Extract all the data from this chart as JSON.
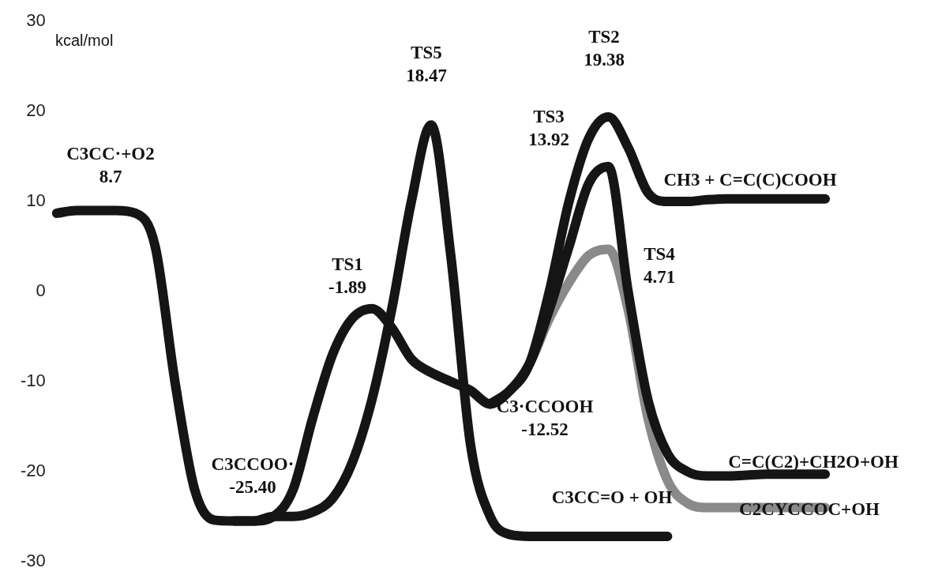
{
  "chart_data": {
    "type": "line",
    "ylabel": "kcal/mol",
    "marker": "none",
    "tick_labels": "y",
    "categories": [
      null,
      null,
      null,
      null,
      null,
      null,
      null,
      null,
      null,
      null,
      null,
      null,
      null,
      null,
      null,
      null,
      null,
      null,
      null,
      null,
      null,
      null,
      null,
      null,
      null,
      null,
      null,
      null,
      null,
      null,
      null,
      null,
      null,
      null,
      null,
      null,
      null,
      null,
      null,
      null,
      null
    ],
    "ylim": [
      -30,
      30
    ],
    "yticks": [
      -30,
      -20,
      -10,
      0,
      10,
      20,
      30
    ],
    "series": [
      {
        "color": "#151515",
        "values": [
          8.7,
          9,
          9,
          9,
          8.7,
          5,
          -10,
          -22,
          -25.4,
          -25.5,
          -25.5,
          -25,
          -22,
          -14,
          -7,
          -3,
          -1.9,
          -4,
          -7.5,
          -9,
          -10,
          -11,
          -12.5,
          -11,
          -8,
          0,
          10,
          17,
          19.4,
          16,
          11,
          10,
          10,
          10.2,
          10.3,
          10.3,
          10.3,
          10.3,
          10.3,
          10.3,
          null
        ]
      },
      {
        "color": "#151515",
        "values": [
          null,
          null,
          null,
          null,
          null,
          null,
          null,
          null,
          null,
          -25.5,
          -25.5,
          -25,
          -25,
          -24.5,
          -23,
          -19,
          -12,
          -2,
          10,
          18.5,
          4,
          -17,
          -25,
          -27,
          -27.2,
          -27.2,
          -27.2,
          -27.2,
          -27.2,
          -27.2,
          -27.2,
          -27.2,
          null,
          null,
          null,
          null,
          null,
          null,
          null,
          null,
          null
        ]
      },
      {
        "color": "#151515",
        "values": [
          null,
          null,
          null,
          null,
          null,
          null,
          null,
          null,
          null,
          null,
          null,
          null,
          null,
          null,
          null,
          null,
          null,
          null,
          null,
          null,
          null,
          null,
          -12.5,
          -11,
          -8,
          -2,
          5,
          12,
          13.9,
          0,
          -12,
          -18,
          -20,
          -20.5,
          -20.5,
          -20.4,
          -20.3,
          -20.3,
          -20.3,
          -20.3,
          null
        ]
      },
      {
        "color": "#8a8a8a",
        "values": [
          null,
          null,
          null,
          null,
          null,
          null,
          null,
          null,
          null,
          null,
          null,
          null,
          null,
          null,
          null,
          null,
          null,
          null,
          null,
          null,
          null,
          null,
          -12.5,
          -11,
          -8,
          -3,
          1,
          4,
          4.7,
          -2,
          -14,
          -21,
          -23.5,
          -24,
          -24,
          -24,
          -24,
          -24,
          -24,
          -24,
          null
        ]
      }
    ],
    "annotations": [
      "C3CC·+O2\n8.7",
      "C3CCOO·\n-25.40",
      "TS1\n-1.89",
      "TS5\n18.47",
      "TS3\n13.92",
      "TS2\n19.38",
      "TS4\n4.71",
      "C3·CCOOH\n-12.52",
      "CH3 + C=C(C)COOH",
      "C=C(C2)+CH2O+OH",
      "C2CYCCOC+OH",
      "C3CC=O + OH"
    ]
  }
}
